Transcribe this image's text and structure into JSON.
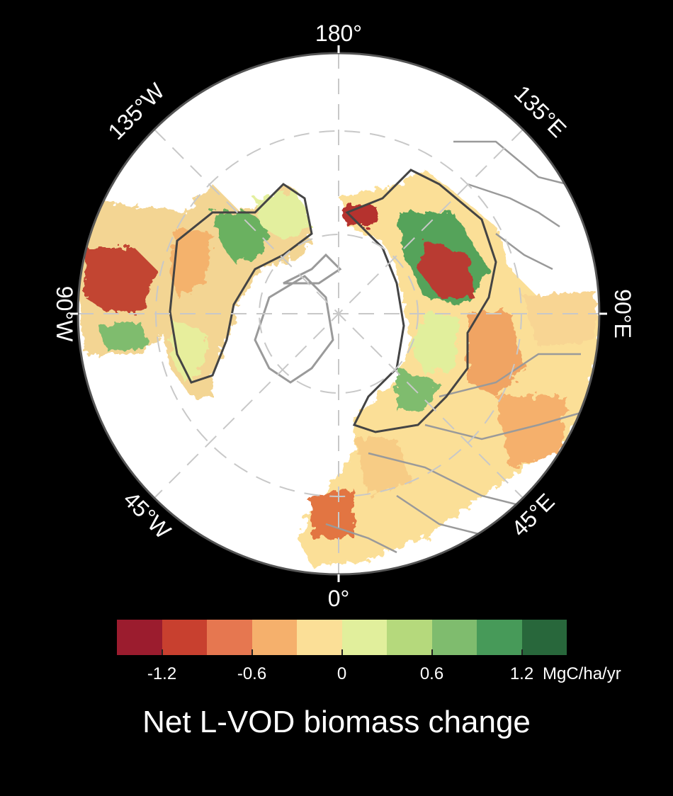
{
  "map": {
    "projection": "north polar stereographic",
    "longitude_labels": {
      "lon_180": "180°",
      "lon_135W": "135°W",
      "lon_135E": "135°E",
      "lon_90W": "90°W",
      "lon_90E": "90°E",
      "lon_45W": "45°W",
      "lon_45E": "45°E",
      "lon_0": "0°"
    },
    "background_color": "#000000",
    "ocean_color": "#ffffff",
    "coastline_color": "#9a9a9a",
    "boreal_outline_color": "#444444"
  },
  "legend": {
    "title": "Net L-VOD biomass change",
    "unit": "MgC/ha/yr",
    "tick_labels": [
      "-1.2",
      "-0.6",
      "0",
      "0.6",
      "1.2"
    ],
    "tick_values": [
      -1.2,
      -0.6,
      0,
      0.6,
      1.2
    ],
    "range": [
      -1.5,
      1.5
    ],
    "colors": [
      "#9b1c2e",
      "#c8402f",
      "#e67750",
      "#f5b06c",
      "#fbdf97",
      "#e1ef9c",
      "#b5d97c",
      "#7fbc6e",
      "#479a59",
      "#28673b"
    ]
  }
}
